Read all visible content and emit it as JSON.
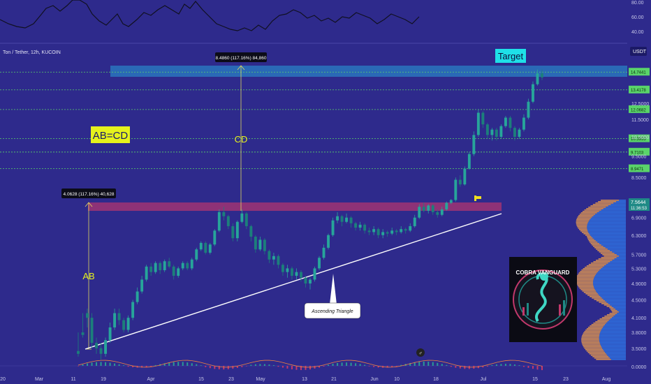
{
  "header": {
    "symbol_label": "Ton / Tether, 12h, KUCOIN",
    "currency": "USDT"
  },
  "annotations": {
    "ab_cd": "AB=CD",
    "cd": "CD",
    "ab": "AB",
    "target": "Target",
    "ascending_triangle": "Ascending Triangle",
    "measure_top": "8.4860 (117.16%) 84,860",
    "measure_bottom": "4.0628 (117.16%) 40,628"
  },
  "logo": {
    "text": "COBRA VANGUARD"
  },
  "colors": {
    "background": "#2e2a8c",
    "candle": "#1f8a86",
    "zone": "#c2386b",
    "target_zone": "#2a7fc4",
    "level_line": "#5ad46a",
    "target_label_bg": "#1ee0e8",
    "abcd_label_bg": "#e6f21c",
    "volume_profile_up": "#2f77e8",
    "volume_profile_down": "#f0a04a"
  },
  "chart_data": {
    "type": "candlestick",
    "title": "Ton / Tether, 12h, KUCOIN",
    "yaxis": {
      "scale": "log",
      "range": [
        3.3,
        15.2
      ],
      "ticks": [
        "12.5000",
        "11.5000",
        "10.5000",
        "9.5000",
        "8.5000",
        "6.9000",
        "6.3000",
        "5.7000",
        "5.3000",
        "4.9000",
        "4.5000",
        "4.1000",
        "3.8000",
        "3.5000"
      ],
      "level_lines": [
        14.7,
        13.4,
        12.1,
        10.4,
        9.7,
        8.9
      ],
      "level_labels": [
        "14.7441",
        "13.4178",
        "12.0682",
        "10.3933",
        "9.7103",
        "8.9471"
      ],
      "last_price": "7.5644",
      "last_time": "11:36:53"
    },
    "xaxis": {
      "ticks": [
        "20",
        "Mar",
        "11",
        "19",
        "Apr",
        "15",
        "23",
        "May",
        "13",
        "21",
        "Jun",
        "10",
        "18",
        "Jul",
        "15",
        "23",
        "Aug"
      ]
    },
    "oscillator": {
      "ticks": [
        "80.00",
        "60.00",
        "40.00"
      ]
    },
    "macd": {
      "ticks": [
        "0.0000"
      ]
    },
    "ohlc": [
      [
        3.45,
        3.4,
        3.8,
        3.35
      ],
      [
        3.8,
        3.75,
        4.2,
        3.7
      ],
      [
        4.2,
        4.1,
        4.3,
        3.9
      ],
      [
        4.1,
        3.6,
        4.2,
        3.5
      ],
      [
        3.6,
        3.5,
        3.7,
        3.4
      ],
      [
        3.5,
        3.4,
        3.6,
        3.3
      ],
      [
        3.4,
        3.65,
        3.7,
        3.35
      ],
      [
        3.65,
        3.9,
        4,
        3.6
      ],
      [
        3.9,
        4.2,
        4.3,
        3.85
      ],
      [
        4.2,
        4.05,
        4.3,
        3.95
      ],
      [
        4.05,
        3.85,
        4.1,
        3.8
      ],
      [
        3.85,
        4.1,
        4.15,
        3.8
      ],
      [
        4.1,
        4.45,
        4.5,
        4.05
      ],
      [
        4.45,
        4.7,
        4.8,
        4.4
      ],
      [
        4.7,
        5,
        5.1,
        4.65
      ],
      [
        5,
        5.35,
        5.4,
        4.95
      ],
      [
        5.35,
        5.2,
        5.45,
        5.1
      ],
      [
        5.2,
        5.45,
        5.5,
        5.15
      ],
      [
        5.45,
        5.25,
        5.5,
        5.15
      ],
      [
        5.25,
        5.5,
        5.55,
        5.2
      ],
      [
        5.5,
        5.35,
        5.6,
        5.3
      ],
      [
        5.35,
        5.1,
        5.4,
        5
      ],
      [
        5.1,
        5.3,
        5.35,
        5.05
      ],
      [
        5.3,
        5.45,
        5.5,
        5.25
      ],
      [
        5.45,
        5.3,
        5.5,
        5.25
      ],
      [
        5.3,
        5.55,
        5.6,
        5.25
      ],
      [
        5.55,
        5.85,
        5.9,
        5.5
      ],
      [
        5.85,
        6.05,
        6.1,
        5.8
      ],
      [
        6.05,
        5.75,
        6.1,
        5.7
      ],
      [
        5.75,
        6,
        6.05,
        5.7
      ],
      [
        6,
        6.45,
        6.5,
        5.95
      ],
      [
        6.45,
        7.1,
        7.2,
        6.4
      ],
      [
        7.1,
        6.95,
        7.3,
        6.8
      ],
      [
        6.95,
        6.6,
        7,
        6.5
      ],
      [
        6.6,
        6.2,
        6.7,
        6.1
      ],
      [
        6.2,
        6.75,
        6.8,
        6.1
      ],
      [
        6.75,
        7.05,
        7.2,
        6.7
      ],
      [
        7.05,
        6.6,
        7.1,
        6.5
      ],
      [
        6.6,
        6.25,
        6.65,
        6.1
      ],
      [
        6.25,
        5.85,
        6.3,
        5.75
      ],
      [
        5.85,
        6.15,
        6.25,
        5.8
      ],
      [
        6.15,
        5.8,
        6.2,
        5.7
      ],
      [
        5.8,
        5.55,
        5.85,
        5.45
      ],
      [
        5.55,
        5.65,
        5.75,
        5.4
      ],
      [
        5.65,
        5.4,
        5.7,
        5.3
      ],
      [
        5.4,
        5.2,
        5.45,
        5.1
      ],
      [
        5.2,
        5.3,
        5.4,
        5.05
      ],
      [
        5.3,
        5.1,
        5.35,
        5
      ],
      [
        5.1,
        5.2,
        5.3,
        5
      ],
      [
        5.2,
        5.05,
        5.25,
        4.95
      ],
      [
        5.05,
        4.9,
        5.1,
        4.8
      ],
      [
        4.9,
        5,
        5.05,
        4.75
      ],
      [
        5,
        5.3,
        5.35,
        4.95
      ],
      [
        5.3,
        5.6,
        5.65,
        5.25
      ],
      [
        5.6,
        5.9,
        6,
        5.55
      ],
      [
        5.9,
        6.3,
        6.35,
        5.85
      ],
      [
        6.3,
        6.8,
        6.9,
        6.25
      ],
      [
        6.8,
        6.95,
        7.1,
        6.7
      ],
      [
        6.95,
        6.75,
        7,
        6.6
      ],
      [
        6.75,
        6.9,
        7.05,
        6.7
      ],
      [
        6.9,
        6.7,
        6.95,
        6.55
      ],
      [
        6.7,
        6.55,
        6.75,
        6.45
      ],
      [
        6.55,
        6.65,
        6.75,
        6.45
      ],
      [
        6.65,
        6.45,
        6.7,
        6.35
      ],
      [
        6.45,
        6.4,
        6.55,
        6.3
      ],
      [
        6.4,
        6.5,
        6.6,
        6.3
      ],
      [
        6.5,
        6.3,
        6.55,
        6.2
      ],
      [
        6.3,
        6.4,
        6.5,
        6.2
      ],
      [
        6.4,
        6.35,
        6.45,
        6.25
      ],
      [
        6.35,
        6.45,
        6.55,
        6.3
      ],
      [
        6.45,
        6.4,
        6.5,
        6.3
      ],
      [
        6.4,
        6.5,
        6.6,
        6.35
      ],
      [
        6.5,
        6.45,
        6.55,
        6.35
      ],
      [
        6.45,
        6.6,
        6.7,
        6.4
      ],
      [
        6.6,
        6.9,
        7,
        6.55
      ],
      [
        6.9,
        7.3,
        7.4,
        6.85
      ],
      [
        7.3,
        7.15,
        7.45,
        7.1
      ],
      [
        7.15,
        7.35,
        7.4,
        7.05
      ],
      [
        7.35,
        7.1,
        7.4,
        7
      ],
      [
        7.1,
        7,
        7.2,
        6.9
      ],
      [
        7,
        7.2,
        7.3,
        6.95
      ],
      [
        7.2,
        7.45,
        7.5,
        7.15
      ],
      [
        7.45,
        7.56,
        7.6,
        7.4
      ],
      [
        7.56,
        8.4,
        8.5,
        7.5
      ],
      [
        8.4,
        8.2,
        8.6,
        8.1
      ],
      [
        8.2,
        8.9,
        9,
        8.15
      ],
      [
        8.9,
        9.6,
        9.7,
        8.85
      ],
      [
        9.6,
        10.6,
        10.8,
        9.5
      ],
      [
        10.6,
        11.9,
        12.1,
        10.5
      ],
      [
        11.9,
        11.2,
        12,
        11
      ],
      [
        11.2,
        10.6,
        11.3,
        10.4
      ],
      [
        10.6,
        10.9,
        11,
        10.3
      ],
      [
        10.9,
        10.5,
        11,
        10.3
      ],
      [
        10.5,
        11.1,
        11.2,
        10.4
      ],
      [
        11.1,
        11.6,
        11.7,
        11
      ],
      [
        11.6,
        11,
        11.7,
        10.8
      ],
      [
        11,
        10.5,
        11.1,
        10.3
      ],
      [
        10.5,
        10.9,
        11,
        10.4
      ],
      [
        10.9,
        11.6,
        11.8,
        10.8
      ],
      [
        11.6,
        12.6,
        12.8,
        11.5
      ],
      [
        12.6,
        13.8,
        14,
        12.5
      ],
      [
        13.8,
        14.6,
        14.9,
        13.7
      ],
      [
        14.6,
        14.3,
        14.9,
        14.1
      ]
    ]
  }
}
